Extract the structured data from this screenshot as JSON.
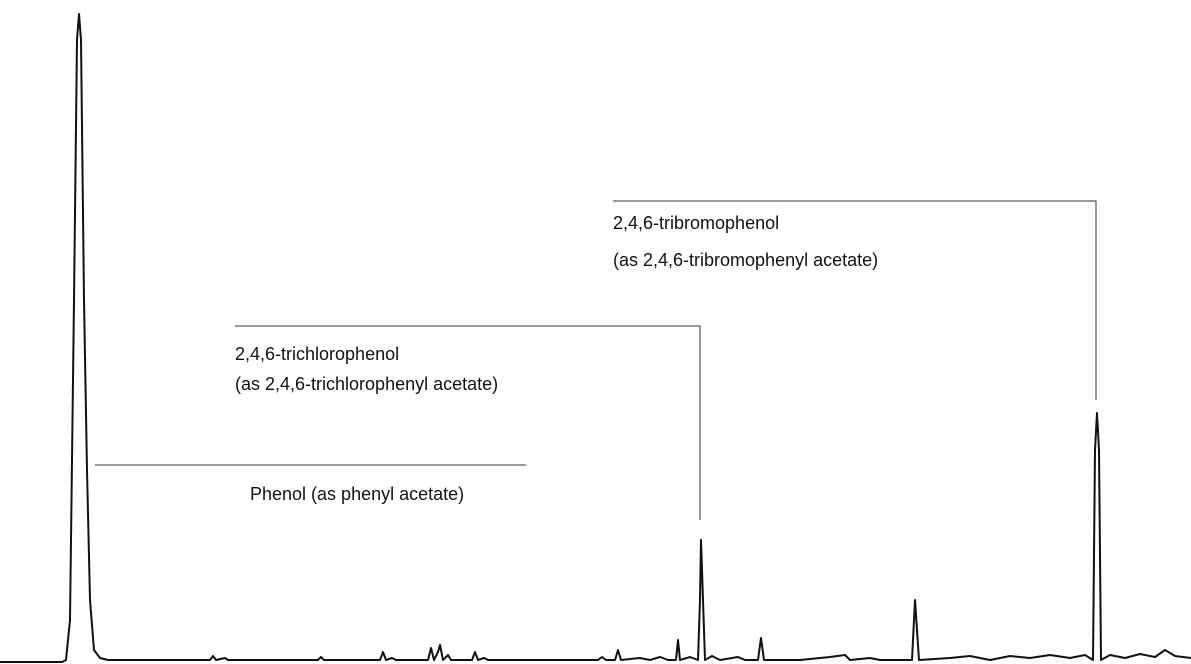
{
  "annotations": {
    "phenol": {
      "lines": [
        "Phenol (as phenyl acetate)"
      ]
    },
    "trichlorophenol": {
      "lines": [
        "2,4,6-trichlorophenol",
        "(as 2,4,6-trichlorophenyl acetate)"
      ]
    },
    "tribromophenol": {
      "lines": [
        "2,4,6-tribromophenol",
        "(as 2,4,6-tribromophenyl acetate)"
      ]
    }
  }
}
